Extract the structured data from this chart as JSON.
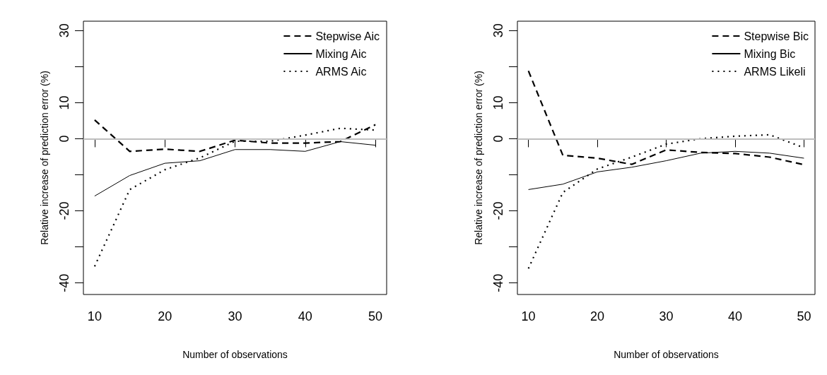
{
  "chart_data": [
    {
      "type": "line",
      "xlabel": "Number of observations",
      "ylabel": "Relative increase of prediction error (%)",
      "x": [
        10,
        15,
        20,
        25,
        30,
        35,
        40,
        45,
        50
      ],
      "xlim": [
        8.4,
        51.6
      ],
      "xticks": [
        10,
        20,
        30,
        40,
        50
      ],
      "ylim": [
        -43.2,
        32.6
      ],
      "yticks": [
        -40,
        {
          "value": -30,
          "label": null
        },
        -20,
        {
          "value": -10,
          "label": null
        },
        0,
        10,
        {
          "value": 20,
          "label": null
        },
        30
      ],
      "grid": false,
      "legend": "top right",
      "marker": "none",
      "ref_lines": [
        {
          "axis": "y",
          "value": 0,
          "color": "#bebebe",
          "line_style": "solid"
        }
      ],
      "series": [
        {
          "name": "Stepwise Aic",
          "color": "#000000",
          "line_style": "dashed",
          "values": [
            5.2,
            -3.5,
            -2.9,
            -3.5,
            -0.4,
            -1.2,
            -1.2,
            -0.8,
            3.9
          ]
        },
        {
          "name": "Mixing Aic",
          "color": "#000000",
          "line_style": "solid",
          "values": [
            -15.9,
            -10.2,
            -6.8,
            -6.1,
            -3.0,
            -3.0,
            -3.5,
            -0.8,
            -1.8
          ]
        },
        {
          "name": "ARMS Aic",
          "color": "#000000",
          "line_style": "dotted",
          "values": [
            -35.4,
            -14.1,
            -8.6,
            -5.3,
            -0.7,
            -0.7,
            1.0,
            2.9,
            2.4
          ]
        }
      ]
    },
    {
      "type": "line",
      "xlabel": "Number of observations",
      "ylabel": "Relative increase of prediction error (%)",
      "x": [
        10,
        15,
        20,
        25,
        30,
        35,
        40,
        45,
        50
      ],
      "xlim": [
        8.4,
        51.6
      ],
      "xticks": [
        10,
        20,
        30,
        40,
        50
      ],
      "ylim": [
        -43.2,
        32.6
      ],
      "yticks": [
        -40,
        {
          "value": -30,
          "label": null
        },
        -20,
        {
          "value": -10,
          "label": null
        },
        0,
        10,
        {
          "value": 20,
          "label": null
        },
        30
      ],
      "grid": false,
      "legend": "top right",
      "marker": "none",
      "ref_lines": [
        {
          "axis": "y",
          "value": 0,
          "color": "#bebebe",
          "line_style": "solid"
        }
      ],
      "series": [
        {
          "name": "Stepwise Bic",
          "color": "#000000",
          "line_style": "dashed",
          "values": [
            18.8,
            -4.6,
            -5.4,
            -7.1,
            -3.1,
            -3.8,
            -4.1,
            -5.1,
            -7.2
          ]
        },
        {
          "name": "Mixing Bic",
          "color": "#000000",
          "line_style": "solid",
          "values": [
            -14.1,
            -12.6,
            -9.2,
            -7.9,
            -6.1,
            -4.0,
            -3.5,
            -4.0,
            -5.4
          ]
        },
        {
          "name": "ARMS Likeli",
          "color": "#000000",
          "line_style": "dotted",
          "values": [
            -36.0,
            -14.9,
            -8.4,
            -5.1,
            -1.5,
            0,
            0.7,
            1.1,
            -2.5
          ]
        }
      ]
    }
  ]
}
